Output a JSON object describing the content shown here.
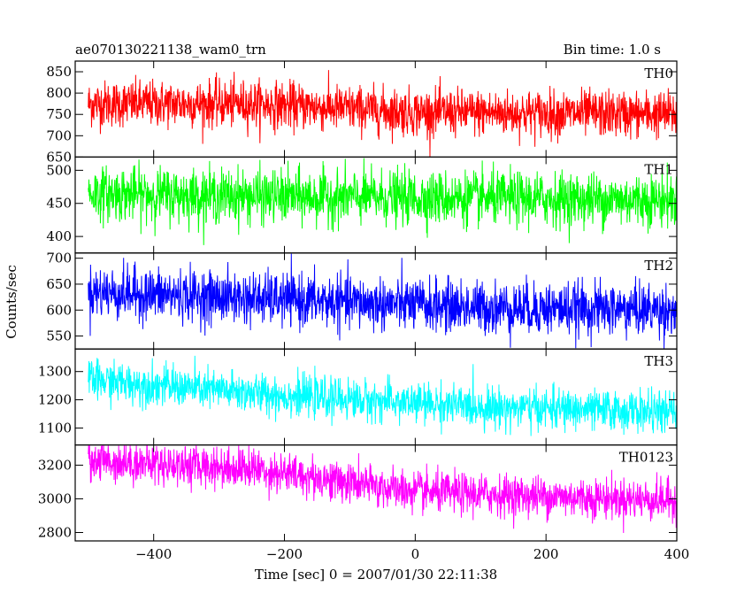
{
  "header": {
    "title": "ae070130221138_wam0_trn",
    "bin_time": "Bin time: 1.0 s"
  },
  "chart_data": {
    "type": "line",
    "xlabel": "Time [sec] 0 = 2007/01/30 22:11:38",
    "ylabel": "Counts/sec",
    "xlim": [
      -520,
      400
    ],
    "x_ticks": [
      -400,
      -200,
      0,
      200,
      400
    ],
    "x_tick_labels": [
      "−400",
      "−200",
      "0",
      "200",
      "400"
    ],
    "x_range": [
      -500,
      400
    ],
    "bin_time": 1.0,
    "panels": [
      {
        "name": "TH0",
        "color": "#ff0000",
        "ylim": [
          650,
          875
        ],
        "y_ticks": [
          650,
          700,
          750,
          800,
          850
        ],
        "trend": [
          [
            -500,
            775
          ],
          [
            -250,
            775
          ],
          [
            0,
            755
          ],
          [
            400,
            750
          ]
        ],
        "noise": 27
      },
      {
        "name": "TH1",
        "color": "#00ff00",
        "ylim": [
          375,
          520
        ],
        "y_ticks": [
          400,
          450,
          500
        ],
        "trend": [
          [
            -500,
            465
          ],
          [
            -200,
            460
          ],
          [
            400,
            455
          ]
        ],
        "noise": 20
      },
      {
        "name": "TH2",
        "color": "#0000ff",
        "ylim": [
          525,
          710
        ],
        "y_ticks": [
          550,
          600,
          650,
          700
        ],
        "trend": [
          [
            -500,
            635
          ],
          [
            -200,
            620
          ],
          [
            100,
            605
          ],
          [
            400,
            600
          ]
        ],
        "noise": 25
      },
      {
        "name": "TH3",
        "color": "#00ffff",
        "ylim": [
          1040,
          1380
        ],
        "y_ticks": [
          1100,
          1200,
          1300
        ],
        "trend": [
          [
            -500,
            1270
          ],
          [
            -200,
            1215
          ],
          [
            100,
            1175
          ],
          [
            400,
            1155
          ]
        ],
        "noise": 35
      },
      {
        "name": "TH0123",
        "color": "#ff00ff",
        "ylim": [
          2750,
          3320
        ],
        "y_ticks": [
          2800,
          3000,
          3200
        ],
        "trend": [
          [
            -500,
            3230
          ],
          [
            -250,
            3180
          ],
          [
            0,
            3040
          ],
          [
            400,
            2990
          ]
        ],
        "noise": 60
      }
    ]
  }
}
